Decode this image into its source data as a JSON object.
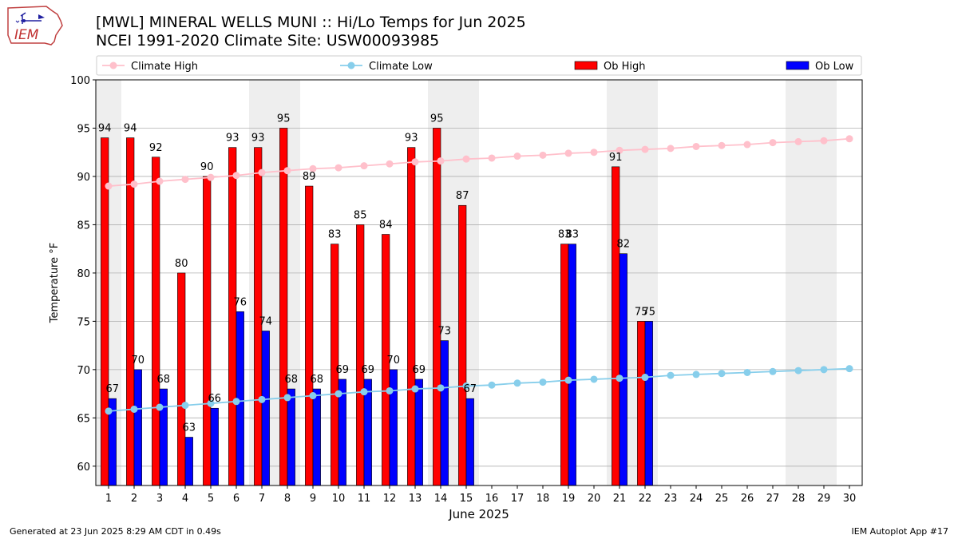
{
  "title_line1": "[MWL] MINERAL WELLS MUNI :: Hi/Lo Temps for Jun 2025",
  "title_line2": "NCEI 1991-2020 Climate Site: USW00093985",
  "logo_text": "IEM",
  "footer_left": "Generated at 23 Jun 2025 8:29 AM CDT in 0.49s",
  "footer_right": "IEM Autoplot App #17",
  "colors": {
    "climate_high": "#ffc0cb",
    "climate_low": "#87ceeb",
    "ob_high": "#ff0000",
    "ob_low": "#0000ff",
    "weekend_band": "#eeeeee",
    "grid": "#b0b0b0"
  },
  "chart_data": {
    "type": "bar",
    "xlabel": "June 2025",
    "ylabel": "Temperature $^\\circ$F",
    "ylim": [
      58,
      100
    ],
    "yticks": [
      60,
      65,
      70,
      75,
      80,
      85,
      90,
      95,
      100
    ],
    "grid": "horizontal",
    "legend_position": "top",
    "legend": [
      "Climate High",
      "Climate Low",
      "Ob High",
      "Ob Low"
    ],
    "x": [
      1,
      2,
      3,
      4,
      5,
      6,
      7,
      8,
      9,
      10,
      11,
      12,
      13,
      14,
      15,
      16,
      17,
      18,
      19,
      20,
      21,
      22,
      23,
      24,
      25,
      26,
      27,
      28,
      29,
      30
    ],
    "weekend_days": [
      1,
      7,
      8,
      14,
      15,
      21,
      22,
      28,
      29
    ],
    "series": [
      {
        "name": "Climate High",
        "kind": "line",
        "values": [
          89.0,
          89.2,
          89.5,
          89.7,
          89.9,
          90.1,
          90.4,
          90.6,
          90.8,
          90.9,
          91.1,
          91.3,
          91.5,
          91.6,
          91.8,
          91.9,
          92.1,
          92.2,
          92.4,
          92.5,
          92.7,
          92.8,
          92.9,
          93.1,
          93.2,
          93.3,
          93.5,
          93.6,
          93.7,
          93.9
        ]
      },
      {
        "name": "Climate Low",
        "kind": "line",
        "values": [
          65.7,
          65.9,
          66.1,
          66.3,
          66.5,
          66.7,
          66.9,
          67.1,
          67.3,
          67.5,
          67.7,
          67.8,
          68.0,
          68.1,
          68.3,
          68.4,
          68.6,
          68.7,
          68.9,
          69.0,
          69.1,
          69.2,
          69.4,
          69.5,
          69.6,
          69.7,
          69.8,
          69.9,
          70.0,
          70.1
        ]
      },
      {
        "name": "Ob High",
        "kind": "bar",
        "values": [
          94,
          94,
          92,
          80,
          90,
          93,
          93,
          95,
          89,
          83,
          85,
          84,
          93,
          95,
          87,
          null,
          null,
          null,
          83,
          null,
          91,
          75,
          null,
          null,
          null,
          null,
          null,
          null,
          null,
          null
        ]
      },
      {
        "name": "Ob Low",
        "kind": "bar",
        "values": [
          67,
          70,
          68,
          63,
          66,
          76,
          74,
          68,
          68,
          69,
          69,
          70,
          69,
          73,
          67,
          null,
          null,
          null,
          83,
          null,
          82,
          75,
          null,
          null,
          null,
          null,
          null,
          null,
          null,
          null
        ]
      }
    ]
  }
}
